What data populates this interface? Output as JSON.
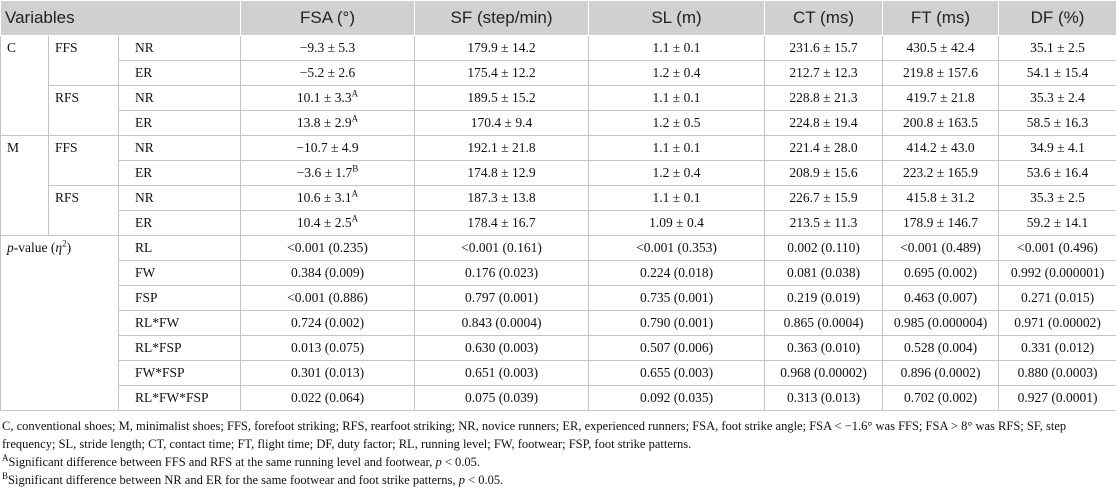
{
  "header": [
    "Variables",
    "FSA (°)",
    "SF (step/min)",
    "SL (m)",
    "CT (ms)",
    "FT (ms)",
    "DF (%)"
  ],
  "table": {
    "groups": [
      {
        "name": "C",
        "subgroups": [
          {
            "name": "FFS",
            "rows": [
              {
                "level": "NR",
                "cells": [
                  "−9.3 ± 5.3",
                  "179.9 ± 14.2",
                  "1.1 ± 0.1",
                  "231.6 ± 15.7",
                  "430.5 ± 42.4",
                  "35.1 ± 2.5"
                ]
              },
              {
                "level": "ER",
                "cells": [
                  "−5.2 ± 2.6",
                  "175.4 ± 12.2",
                  "1.2 ± 0.4",
                  "212.7 ± 12.3",
                  "219.8 ± 157.6",
                  "54.1 ± 15.4"
                ]
              }
            ]
          },
          {
            "name": "RFS",
            "rows": [
              {
                "level": "NR",
                "cells": [
                  {
                    "text": "10.1 ± 3.3",
                    "sup": "A"
                  },
                  "189.5 ± 15.2",
                  "1.1 ± 0.1",
                  "228.8 ± 21.3",
                  "419.7 ± 21.8",
                  "35.3 ± 2.4"
                ]
              },
              {
                "level": "ER",
                "cells": [
                  {
                    "text": "13.8 ± 2.9",
                    "sup": "A"
                  },
                  "170.4 ± 9.4",
                  "1.2 ± 0.5",
                  "224.8 ± 19.4",
                  "200.8 ± 163.5",
                  "58.5 ± 16.3"
                ]
              }
            ]
          }
        ]
      },
      {
        "name": "M",
        "subgroups": [
          {
            "name": "FFS",
            "rows": [
              {
                "level": "NR",
                "cells": [
                  "−10.7 ± 4.9",
                  "192.1 ± 21.8",
                  "1.1 ± 0.1",
                  "221.4 ± 28.0",
                  "414.2 ± 43.0",
                  "34.9 ± 4.1"
                ]
              },
              {
                "level": "ER",
                "cells": [
                  {
                    "text": "−3.6 ± 1.7",
                    "sup": "B"
                  },
                  "174.8 ± 12.9",
                  "1.2 ± 0.4",
                  "208.9 ± 15.6",
                  "223.2 ± 165.9",
                  "53.6 ± 16.4"
                ]
              }
            ]
          },
          {
            "name": "RFS",
            "rows": [
              {
                "level": "NR",
                "cells": [
                  {
                    "text": "10.6 ± 3.1",
                    "sup": "A"
                  },
                  "187.3 ± 13.8",
                  "1.1 ± 0.1",
                  "226.7 ± 15.9",
                  "415.8 ± 31.2",
                  "35.3 ± 2.5"
                ]
              },
              {
                "level": "ER",
                "cells": [
                  {
                    "text": "10.4 ± 2.5",
                    "sup": "A"
                  },
                  "178.4 ± 16.7",
                  "1.09 ± 0.4",
                  "213.5 ± 11.3",
                  "178.9 ± 146.7",
                  "59.2 ± 14.1"
                ]
              }
            ]
          }
        ]
      }
    ],
    "pvalue": {
      "label_parts": [
        "p",
        "-value (",
        "η",
        "2",
        ")"
      ],
      "rows": [
        {
          "factor": "RL",
          "cells": [
            "<0.001 (0.235)",
            "<0.001 (0.161)",
            "<0.001 (0.353)",
            "0.002 (0.110)",
            "<0.001 (0.489)",
            "<0.001 (0.496)"
          ]
        },
        {
          "factor": "FW",
          "cells": [
            "0.384 (0.009)",
            "0.176 (0.023)",
            "0.224 (0.018)",
            "0.081 (0.038)",
            "0.695 (0.002)",
            "0.992 (0.000001)"
          ]
        },
        {
          "factor": "FSP",
          "cells": [
            "<0.001 (0.886)",
            "0.797 (0.001)",
            "0.735 (0.001)",
            "0.219 (0.019)",
            "0.463 (0.007)",
            "0.271 (0.015)"
          ]
        },
        {
          "factor": "RL*FW",
          "cells": [
            "0.724 (0.002)",
            "0.843 (0.0004)",
            "0.790 (0.001)",
            "0.865 (0.0004)",
            "0.985 (0.000004)",
            "0.971 (0.00002)"
          ]
        },
        {
          "factor": "RL*FSP",
          "cells": [
            "0.013 (0.075)",
            "0.630 (0.003)",
            "0.507 (0.006)",
            "0.363 (0.010)",
            "0.528 (0.004)",
            "0.331 (0.012)"
          ]
        },
        {
          "factor": "FW*FSP",
          "cells": [
            "0.301 (0.013)",
            "0.651 (0.003)",
            "0.655 (0.003)",
            "0.968 (0.00002)",
            "0.896 (0.0002)",
            "0.880 (0.0003)"
          ]
        },
        {
          "factor": "RL*FW*FSP",
          "cells": [
            "0.022 (0.064)",
            "0.075 (0.039)",
            "0.092 (0.035)",
            "0.313 (0.013)",
            "0.702 (0.002)",
            "0.927 (0.0001)"
          ]
        }
      ]
    }
  },
  "notes": {
    "abbreviations": "C, conventional shoes; M, minimalist shoes; FFS, forefoot striking; RFS, rearfoot striking; NR, novice runners; ER, experienced runners; FSA, foot strike angle; FSA < −1.6° was FFS; FSA > 8° was RFS; SF, step frequency; SL, stride length; CT, contact time; FT, flight time; DF, duty factor; RL, running level; FW, footwear; FSP, foot strike patterns.",
    "footnotes": [
      {
        "mark": "A",
        "text": "Significant difference between FFS and RFS at the same running level and footwear, ",
        "p": "p",
        "tail": " < 0.05."
      },
      {
        "mark": "B",
        "text": "Significant difference between NR and ER for the same footwear and foot strike patterns, ",
        "p": "p",
        "tail": " < 0.05."
      }
    ]
  }
}
